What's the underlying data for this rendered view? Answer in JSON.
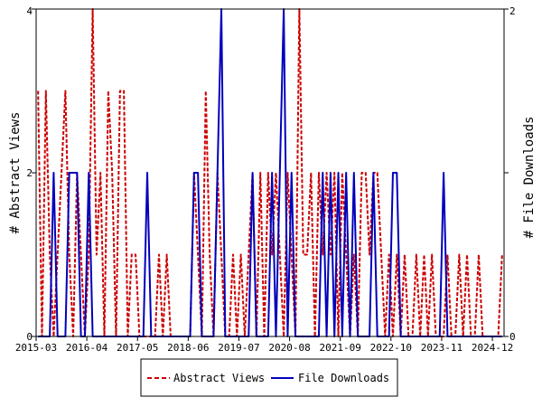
{
  "chart_data": {
    "type": "line",
    "x_ticks": [
      "2015-03",
      "2016-04",
      "2017-05",
      "2018-06",
      "2019-07",
      "2020-08",
      "2021-09",
      "2022-10",
      "2023-11",
      "2024-12"
    ],
    "xlim": [
      "2015-03",
      "2025-03"
    ],
    "left_axis": {
      "label": "# Abstract Views",
      "ylim": [
        0,
        4
      ],
      "ticks": [
        0,
        2,
        4
      ]
    },
    "right_axis": {
      "label": "# File Downloads",
      "ylim": [
        0,
        2
      ],
      "ticks": [
        0,
        1,
        2
      ]
    },
    "legend": {
      "position": "bottom-center"
    },
    "grid": false,
    "series": [
      {
        "name": "Abstract Views",
        "axis": "left",
        "color": "#cc0000",
        "style": "dashed",
        "months": [
          "2015-03",
          "2015-04",
          "2015-05",
          "2015-06",
          "2015-07",
          "2015-08",
          "2015-09",
          "2015-10",
          "2015-11",
          "2015-12",
          "2016-01",
          "2016-02",
          "2016-03",
          "2016-04",
          "2016-05",
          "2016-06",
          "2016-07",
          "2016-08",
          "2016-09",
          "2016-10",
          "2016-11",
          "2016-12",
          "2017-01",
          "2017-02",
          "2017-03",
          "2017-04",
          "2017-05",
          "2017-06",
          "2017-07",
          "2017-08",
          "2017-09",
          "2017-10",
          "2017-11",
          "2017-12",
          "2018-01",
          "2018-02",
          "2018-03",
          "2018-04",
          "2018-05",
          "2018-06",
          "2018-07",
          "2018-08",
          "2018-09",
          "2018-10",
          "2018-11",
          "2018-12",
          "2019-01",
          "2019-02",
          "2019-03",
          "2019-04",
          "2019-05",
          "2019-06",
          "2019-07",
          "2019-08",
          "2019-09",
          "2019-10",
          "2019-11",
          "2019-12",
          "2020-01",
          "2020-02",
          "2020-03",
          "2020-04",
          "2020-05",
          "2020-06",
          "2020-07",
          "2020-08",
          "2020-09",
          "2020-10",
          "2020-11",
          "2020-12",
          "2021-01",
          "2021-02",
          "2021-03",
          "2021-04",
          "2021-05",
          "2021-06",
          "2021-07",
          "2021-08",
          "2021-09",
          "2021-10",
          "2021-11",
          "2021-12",
          "2022-01",
          "2022-02",
          "2022-03",
          "2022-04",
          "2022-05",
          "2022-06",
          "2022-07",
          "2022-08",
          "2022-09",
          "2022-10",
          "2022-11",
          "2022-12",
          "2023-01",
          "2023-02",
          "2023-03",
          "2023-04",
          "2023-05",
          "2023-06",
          "2023-07",
          "2023-08",
          "2023-09",
          "2023-10",
          "2023-11",
          "2023-12",
          "2024-01",
          "2024-02",
          "2024-03",
          "2024-04",
          "2024-05",
          "2024-06",
          "2024-07",
          "2024-08",
          "2024-09",
          "2024-10",
          "2024-11",
          "2024-12",
          "2025-01",
          "2025-02"
        ],
        "values": [
          3,
          0,
          3,
          1,
          0,
          1,
          2,
          3,
          1,
          0,
          2,
          1,
          0,
          1,
          4,
          1,
          2,
          0,
          3,
          2,
          0,
          3,
          3,
          0,
          1,
          1,
          0,
          0,
          0,
          0,
          0,
          1,
          0,
          1,
          0,
          0,
          0,
          0,
          0,
          0,
          2,
          1,
          0,
          3,
          1,
          0,
          2,
          1,
          0,
          0,
          1,
          0,
          1,
          0,
          1,
          2,
          0,
          2,
          0,
          2,
          1,
          2,
          1,
          0,
          2,
          1,
          0,
          4,
          1,
          1,
          2,
          0,
          2,
          1,
          2,
          1,
          2,
          0,
          2,
          1,
          0,
          1,
          0,
          2,
          2,
          1,
          2,
          2,
          1,
          0,
          1,
          0,
          1,
          0,
          1,
          0,
          0,
          1,
          0,
          1,
          0,
          1,
          0,
          0,
          0,
          1,
          0,
          0,
          1,
          0,
          1,
          0,
          0,
          1,
          0,
          0,
          0,
          0,
          0,
          1
        ]
      },
      {
        "name": "File Downloads",
        "axis": "right",
        "color": "#0000bb",
        "style": "solid",
        "months": [
          "2015-03",
          "2015-04",
          "2015-05",
          "2015-06",
          "2015-07",
          "2015-08",
          "2015-09",
          "2015-10",
          "2015-11",
          "2015-12",
          "2016-01",
          "2016-02",
          "2016-03",
          "2016-04",
          "2016-05",
          "2016-06",
          "2016-07",
          "2016-08",
          "2016-09",
          "2016-10",
          "2016-11",
          "2016-12",
          "2017-01",
          "2017-02",
          "2017-03",
          "2017-04",
          "2017-05",
          "2017-06",
          "2017-07",
          "2017-08",
          "2017-09",
          "2017-10",
          "2017-11",
          "2017-12",
          "2018-01",
          "2018-02",
          "2018-03",
          "2018-04",
          "2018-05",
          "2018-06",
          "2018-07",
          "2018-08",
          "2018-09",
          "2018-10",
          "2018-11",
          "2018-12",
          "2019-01",
          "2019-02",
          "2019-03",
          "2019-04",
          "2019-05",
          "2019-06",
          "2019-07",
          "2019-08",
          "2019-09",
          "2019-10",
          "2019-11",
          "2019-12",
          "2020-01",
          "2020-02",
          "2020-03",
          "2020-04",
          "2020-05",
          "2020-06",
          "2020-07",
          "2020-08",
          "2020-09",
          "2020-10",
          "2020-11",
          "2020-12",
          "2021-01",
          "2021-02",
          "2021-03",
          "2021-04",
          "2021-05",
          "2021-06",
          "2021-07",
          "2021-08",
          "2021-09",
          "2021-10",
          "2021-11",
          "2021-12",
          "2022-01",
          "2022-02",
          "2022-03",
          "2022-04",
          "2022-05",
          "2022-06",
          "2022-07",
          "2022-08",
          "2022-09",
          "2022-10",
          "2022-11",
          "2022-12",
          "2023-01",
          "2023-02",
          "2023-03",
          "2023-04",
          "2023-05",
          "2023-06",
          "2023-07",
          "2023-08",
          "2023-09",
          "2023-10",
          "2023-11",
          "2023-12",
          "2024-01",
          "2024-02",
          "2024-03",
          "2024-04",
          "2024-05",
          "2024-06",
          "2024-07",
          "2024-08",
          "2024-09",
          "2024-10",
          "2024-11",
          "2024-12",
          "2025-01",
          "2025-02"
        ],
        "values": [
          0,
          0,
          0,
          0,
          1,
          0,
          0,
          0,
          1,
          1,
          1,
          0,
          0,
          1,
          0,
          0,
          0,
          0,
          0,
          0,
          0,
          0,
          0,
          0,
          0,
          0,
          0,
          0,
          1,
          0,
          0,
          0,
          0,
          0,
          0,
          0,
          0,
          0,
          0,
          0,
          1,
          1,
          0,
          0,
          0,
          0,
          1,
          2,
          0,
          0,
          0,
          0,
          0,
          0,
          0,
          1,
          0,
          0,
          0,
          0,
          1,
          0,
          1,
          2,
          0,
          1,
          0,
          0,
          0,
          0,
          0,
          0,
          0,
          1,
          0,
          1,
          0,
          1,
          0,
          1,
          0,
          1,
          0,
          0,
          0,
          0,
          1,
          0,
          0,
          0,
          0,
          1,
          1,
          0,
          0,
          0,
          0,
          0,
          0,
          0,
          0,
          0,
          0,
          0,
          1,
          0,
          0,
          0,
          0,
          0,
          0,
          0,
          0,
          0,
          0,
          0,
          0,
          0,
          0,
          0
        ]
      }
    ]
  }
}
